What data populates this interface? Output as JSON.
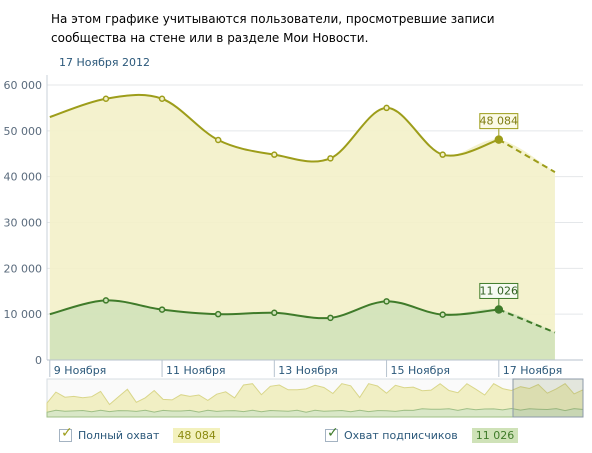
{
  "description": "На этом графике учитываются пользователи, просмотревшие записи сообщества на стене или в разделе Мои Новости.",
  "hover_date": "17 Ноября 2012",
  "legend": [
    {
      "label": "Полный охват",
      "value": "48 084",
      "checked": true,
      "color": "#9d9d1a",
      "bg": "#f3f1bd"
    },
    {
      "label": "Охват подписчиков",
      "value": "11 026",
      "checked": true,
      "color": "#3f7b2a",
      "bg": "#cfe2b8"
    }
  ],
  "chart_data": {
    "type": "area",
    "title": "",
    "xlabel": "",
    "ylabel": "",
    "ylim": [
      0,
      60000
    ],
    "yticks": [
      0,
      10000,
      20000,
      30000,
      40000,
      50000,
      60000
    ],
    "ytick_labels": [
      "0",
      "10 000",
      "20 000",
      "30 000",
      "40 000",
      "50 000",
      "60 000"
    ],
    "x": [
      9,
      10,
      11,
      12,
      13,
      14,
      15,
      16,
      17,
      18
    ],
    "xlim": [
      8.95,
      18.5
    ],
    "xtick_positions": [
      9,
      11,
      13,
      15,
      17
    ],
    "xtick_labels": [
      "9 Ноября",
      "11 Ноября",
      "13 Ноября",
      "15 Ноября",
      "17 Ноября"
    ],
    "grid": true,
    "series": [
      {
        "name": "Полный охват",
        "color": "#9d9d1a",
        "fill": "#f3f1c9",
        "values": [
          53000,
          57000,
          57000,
          48000,
          44800,
          44000,
          55000,
          44800,
          48084,
          41000
        ]
      },
      {
        "name": "Охват подписчиков",
        "color": "#3f7b2a",
        "fill": "#cfe2b8",
        "values": [
          10000,
          13000,
          11000,
          10000,
          10300,
          9200,
          12800,
          9900,
          11026,
          6000
        ]
      }
    ],
    "highlight": {
      "x": 17,
      "labels": [
        "48 084",
        "11 026"
      ]
    },
    "dashed_from_x": 17
  }
}
